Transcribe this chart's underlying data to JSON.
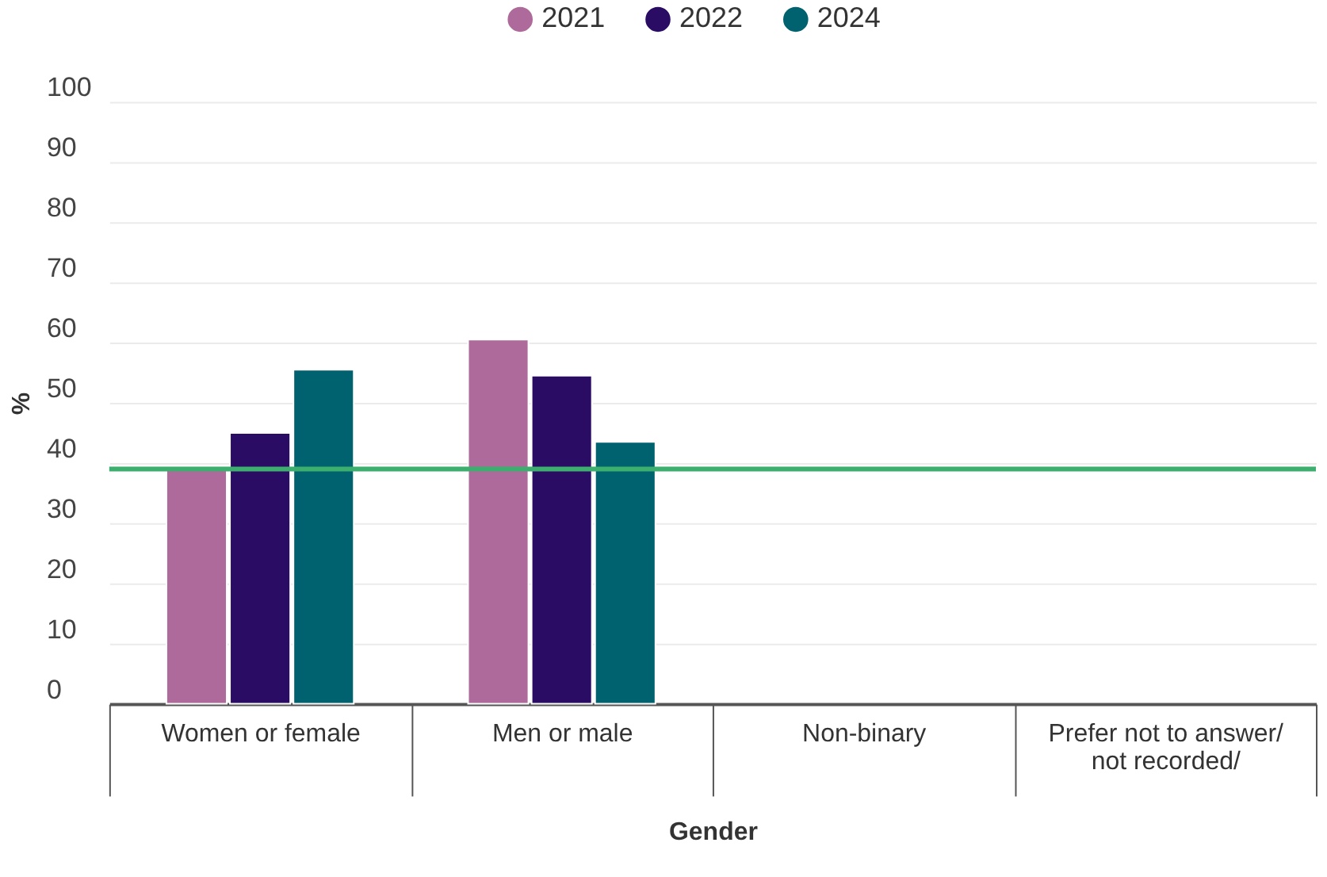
{
  "chart_data": {
    "type": "bar",
    "xlabel": "Gender",
    "ylabel": "%",
    "categories": [
      "Women or female",
      "Men or male",
      "Non-binary",
      "Prefer not to answer/\nnot recorded/"
    ],
    "series": [
      {
        "name": "2021",
        "color": "#ae6a9b",
        "values": [
          39,
          60.5,
          null,
          null
        ]
      },
      {
        "name": "2022",
        "color": "#2a0c64",
        "values": [
          45,
          54.5,
          null,
          null
        ]
      },
      {
        "name": "2024",
        "color": "#00626e",
        "values": [
          55.5,
          43.5,
          null,
          null
        ]
      }
    ],
    "ylim": [
      0,
      100
    ],
    "yticks": [
      0,
      10,
      20,
      30,
      40,
      50,
      60,
      70,
      80,
      90,
      100
    ],
    "grid": "y",
    "legend": "top",
    "ref_lines": [
      {
        "axis": "y",
        "value": 39,
        "color": "#3cae6e"
      }
    ]
  }
}
